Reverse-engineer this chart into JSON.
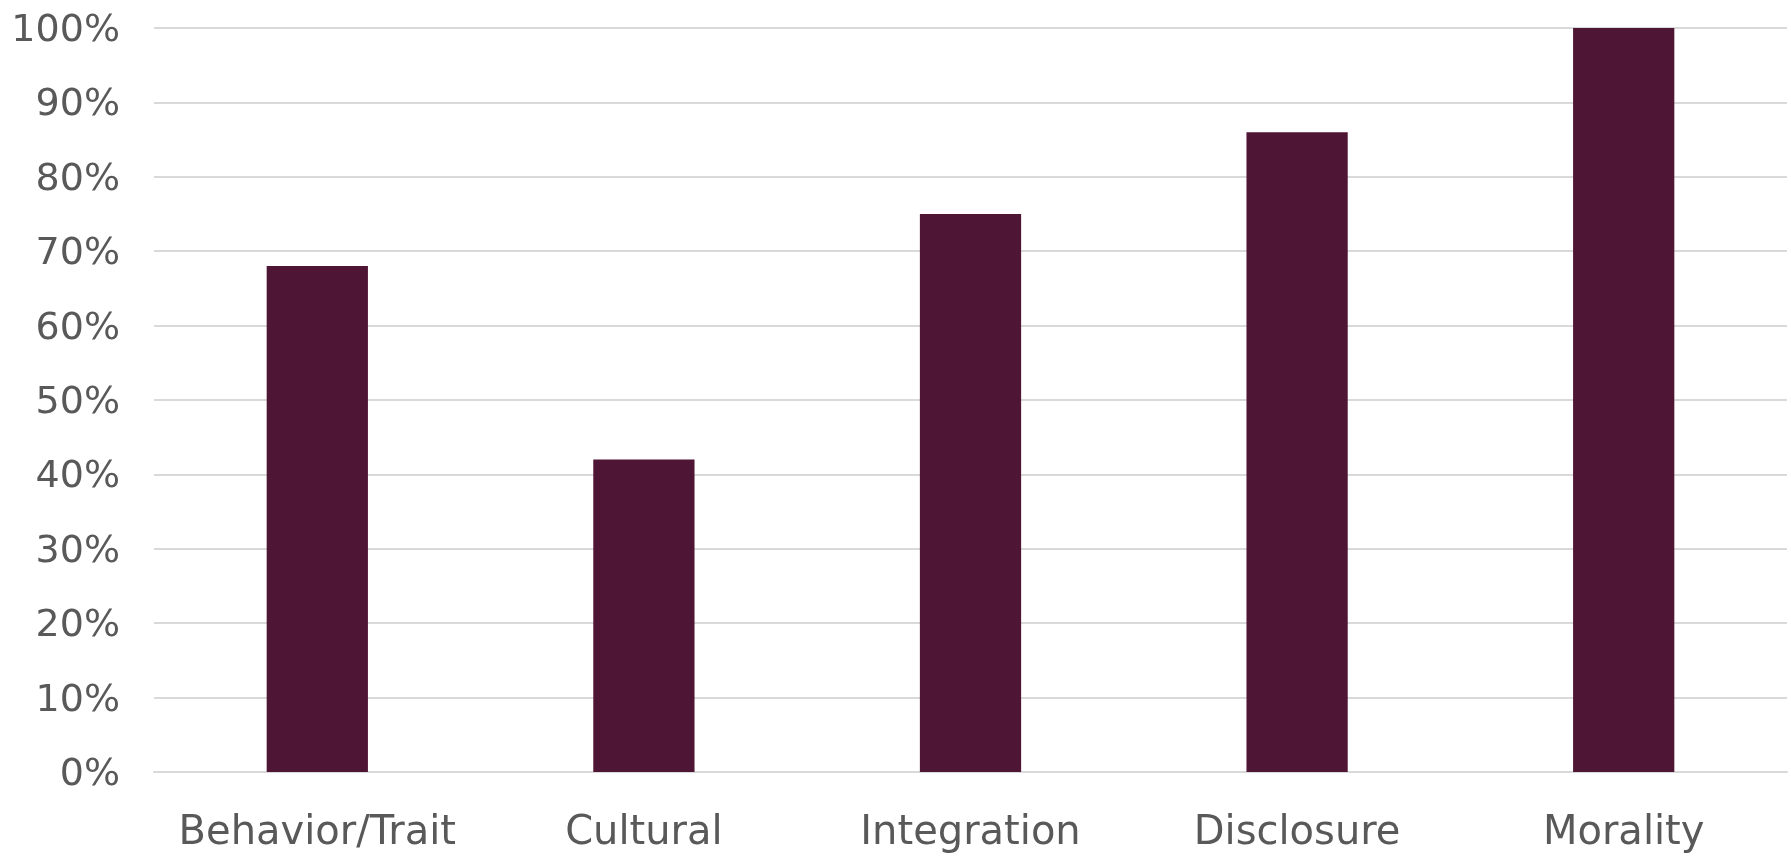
{
  "chart_data": {
    "type": "bar",
    "categories": [
      "Behavior/Trait",
      "Cultural",
      "Integration",
      "Disclosure",
      "Morality"
    ],
    "values": [
      68,
      42,
      75,
      86,
      100
    ],
    "color": "#4e1535",
    "ylim": [
      0,
      100
    ],
    "yticks": [
      {
        "value": 0,
        "label": "0%"
      },
      {
        "value": 10,
        "label": "10%"
      },
      {
        "value": 20,
        "label": "20%"
      },
      {
        "value": 30,
        "label": "30%"
      },
      {
        "value": 40,
        "label": "40%"
      },
      {
        "value": 50,
        "label": "50%"
      },
      {
        "value": 60,
        "label": "60%"
      },
      {
        "value": 70,
        "label": "70%"
      },
      {
        "value": 80,
        "label": "80%"
      },
      {
        "value": 90,
        "label": "90%"
      },
      {
        "value": 100,
        "label": "100%"
      }
    ],
    "grid": true
  }
}
